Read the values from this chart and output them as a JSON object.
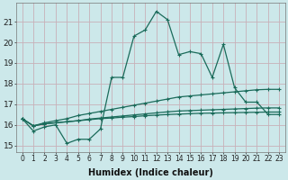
{
  "title": "",
  "xlabel": "Humidex (Indice chaleur)",
  "background_color": "#cce8ea",
  "grid_color": "#c8b0b8",
  "line_color": "#1a6b5a",
  "xlim": [
    -0.5,
    23.5
  ],
  "ylim": [
    14.7,
    21.9
  ],
  "xticks": [
    0,
    1,
    2,
    3,
    4,
    5,
    6,
    7,
    8,
    9,
    10,
    11,
    12,
    13,
    14,
    15,
    16,
    17,
    18,
    19,
    20,
    21,
    22,
    23
  ],
  "yticks": [
    15,
    16,
    17,
    18,
    19,
    20,
    21
  ],
  "series": [
    [
      16.3,
      15.7,
      15.9,
      16.0,
      15.1,
      15.3,
      15.3,
      15.8,
      18.3,
      18.3,
      20.3,
      20.6,
      21.5,
      21.1,
      19.4,
      19.55,
      19.45,
      18.3,
      19.9,
      17.8,
      17.1,
      17.1,
      16.5,
      16.5
    ],
    [
      16.3,
      15.95,
      16.1,
      16.2,
      16.3,
      16.45,
      16.55,
      16.65,
      16.75,
      16.85,
      16.95,
      17.05,
      17.15,
      17.25,
      17.35,
      17.4,
      17.45,
      17.5,
      17.55,
      17.6,
      17.65,
      17.7,
      17.72,
      17.72
    ],
    [
      16.3,
      15.95,
      16.05,
      16.1,
      16.15,
      16.2,
      16.28,
      16.33,
      16.38,
      16.43,
      16.48,
      16.53,
      16.58,
      16.63,
      16.67,
      16.69,
      16.71,
      16.73,
      16.75,
      16.77,
      16.79,
      16.81,
      16.82,
      16.82
    ],
    [
      16.3,
      15.95,
      16.05,
      16.1,
      16.15,
      16.2,
      16.25,
      16.3,
      16.33,
      16.37,
      16.4,
      16.44,
      16.47,
      16.5,
      16.52,
      16.54,
      16.56,
      16.57,
      16.58,
      16.59,
      16.6,
      16.61,
      16.62,
      16.62
    ]
  ],
  "xlabel_fontsize": 7,
  "xlabel_fontweight": "bold",
  "xtick_fontsize": 5.5,
  "ytick_fontsize": 6.5,
  "marker": "+",
  "markersize": 3,
  "linewidth": 0.9
}
